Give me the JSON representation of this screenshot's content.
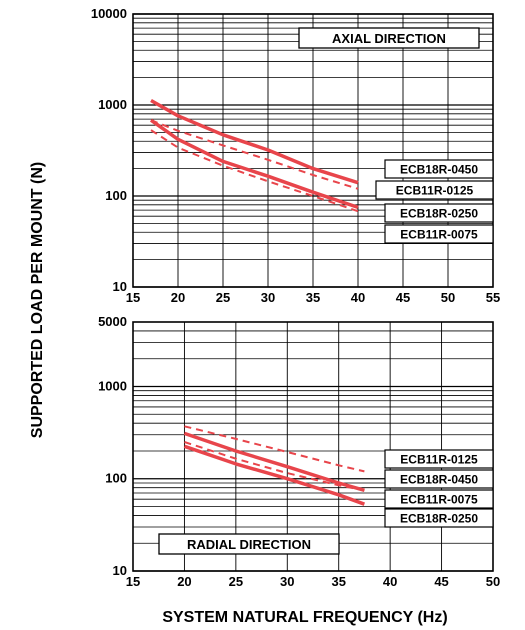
{
  "ylabel": "SUPPORTED LOAD PER MOUNT (N)",
  "xlabel": "SYSTEM NATURAL FREQUENCY (Hz)",
  "colors": {
    "series": "#e8454b",
    "grid": "#000000",
    "background": "#ffffff"
  },
  "chart_data": [
    {
      "type": "line",
      "direction_label": "AXIAL DIRECTION",
      "x_scale": "linear",
      "y_scale": "log",
      "xlim": [
        15,
        55
      ],
      "ylim": [
        10,
        10000
      ],
      "x_ticks": [
        15,
        20,
        25,
        30,
        35,
        40,
        45,
        50,
        55
      ],
      "y_ticks": [
        10,
        100,
        1000,
        10000
      ],
      "grid": true,
      "legend_labels": [
        "ECB18R-0450",
        "ECB11R-0125",
        "ECB18R-0250",
        "ECB11R-0075"
      ],
      "series": [
        {
          "name": "ECB18R-0450",
          "style": "solid",
          "x": [
            17,
            20,
            25,
            30,
            35,
            40
          ],
          "y": [
            1120,
            760,
            470,
            320,
            200,
            140
          ]
        },
        {
          "name": "ECB11R-0125",
          "style": "dashed",
          "x": [
            17,
            20,
            25,
            30,
            35,
            40
          ],
          "y": [
            680,
            520,
            360,
            250,
            170,
            120
          ]
        },
        {
          "name": "ECB18R-0250",
          "style": "solid",
          "x": [
            17,
            20,
            25,
            30,
            35,
            40
          ],
          "y": [
            680,
            420,
            240,
            165,
            110,
            75
          ]
        },
        {
          "name": "ECB11R-0075",
          "style": "dashed",
          "x": [
            17,
            20,
            25,
            30,
            35,
            40
          ],
          "y": [
            530,
            340,
            215,
            145,
            100,
            68
          ]
        }
      ]
    },
    {
      "type": "line",
      "direction_label": "RADIAL DIRECTION",
      "x_scale": "linear",
      "y_scale": "log",
      "xlim": [
        15,
        50
      ],
      "ylim": [
        10,
        5000
      ],
      "x_ticks": [
        15,
        20,
        25,
        30,
        35,
        40,
        45,
        50
      ],
      "y_ticks": [
        10,
        100,
        1000,
        5000
      ],
      "grid": true,
      "legend_labels": [
        "ECB11R-0125",
        "ECB18R-0450",
        "ECB11R-0075",
        "ECB18R-0250"
      ],
      "series": [
        {
          "name": "ECB11R-0125",
          "style": "dashed",
          "x": [
            20,
            25,
            30,
            35,
            37.5
          ],
          "y": [
            370,
            270,
            195,
            140,
            120
          ]
        },
        {
          "name": "ECB18R-0450",
          "style": "solid",
          "x": [
            20,
            25,
            30,
            35,
            37.5
          ],
          "y": [
            310,
            200,
            135,
            90,
            75
          ]
        },
        {
          "name": "ECB11R-0075",
          "style": "dashed",
          "x": [
            20,
            25,
            30,
            35,
            37.5
          ],
          "y": [
            250,
            165,
            115,
            85,
            75
          ]
        },
        {
          "name": "ECB18R-0250",
          "style": "solid",
          "x": [
            20,
            25,
            30,
            35,
            37.5
          ],
          "y": [
            225,
            145,
            100,
            67,
            53
          ]
        }
      ]
    }
  ]
}
